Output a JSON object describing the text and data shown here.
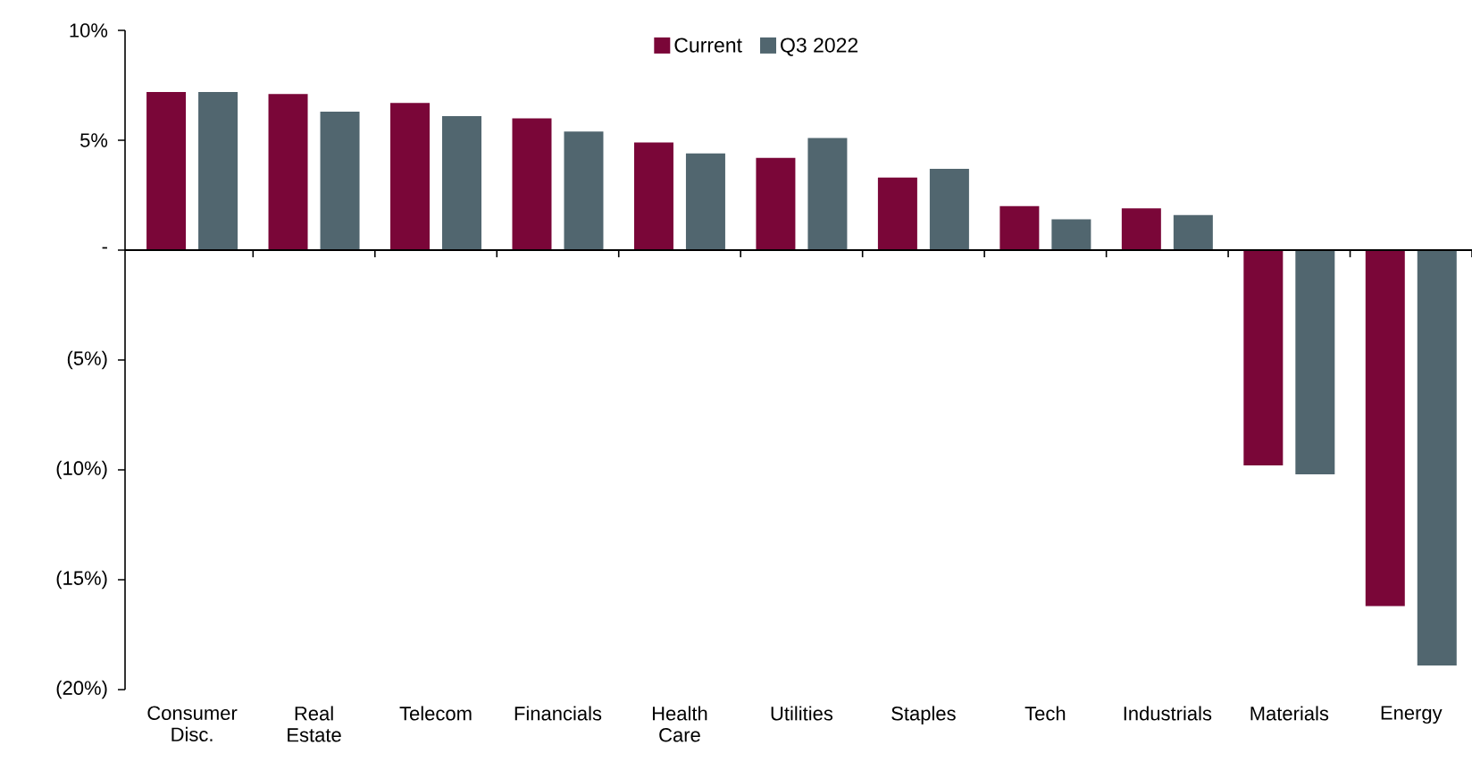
{
  "chart_data": {
    "type": "bar",
    "categories": [
      "Consumer Disc.",
      "Real Estate",
      "Telecom",
      "Financials",
      "Health Care",
      "Utilities",
      "Staples",
      "Tech",
      "Industrials",
      "Materials",
      "Energy"
    ],
    "series": [
      {
        "name": "Current",
        "color": "#7a0638",
        "values": [
          7.2,
          7.1,
          6.7,
          6.0,
          4.9,
          4.2,
          3.3,
          2.0,
          1.9,
          -9.8,
          -16.2
        ]
      },
      {
        "name": "Q3 2022",
        "color": "#51666f",
        "values": [
          7.2,
          6.3,
          6.1,
          5.4,
          4.4,
          5.1,
          3.7,
          1.4,
          1.6,
          -10.2,
          -18.9
        ]
      }
    ],
    "ylim": [
      -20,
      10
    ],
    "yticks": [
      {
        "value": -20,
        "label": "(20%)"
      },
      {
        "value": -15,
        "label": "(15%)"
      },
      {
        "value": -10,
        "label": "(10%)"
      },
      {
        "value": -5,
        "label": "(5%)"
      },
      {
        "value": 0,
        "label": "-"
      },
      {
        "value": 5,
        "label": "5%"
      },
      {
        "value": 10,
        "label": "10%"
      }
    ],
    "legend": "top"
  }
}
